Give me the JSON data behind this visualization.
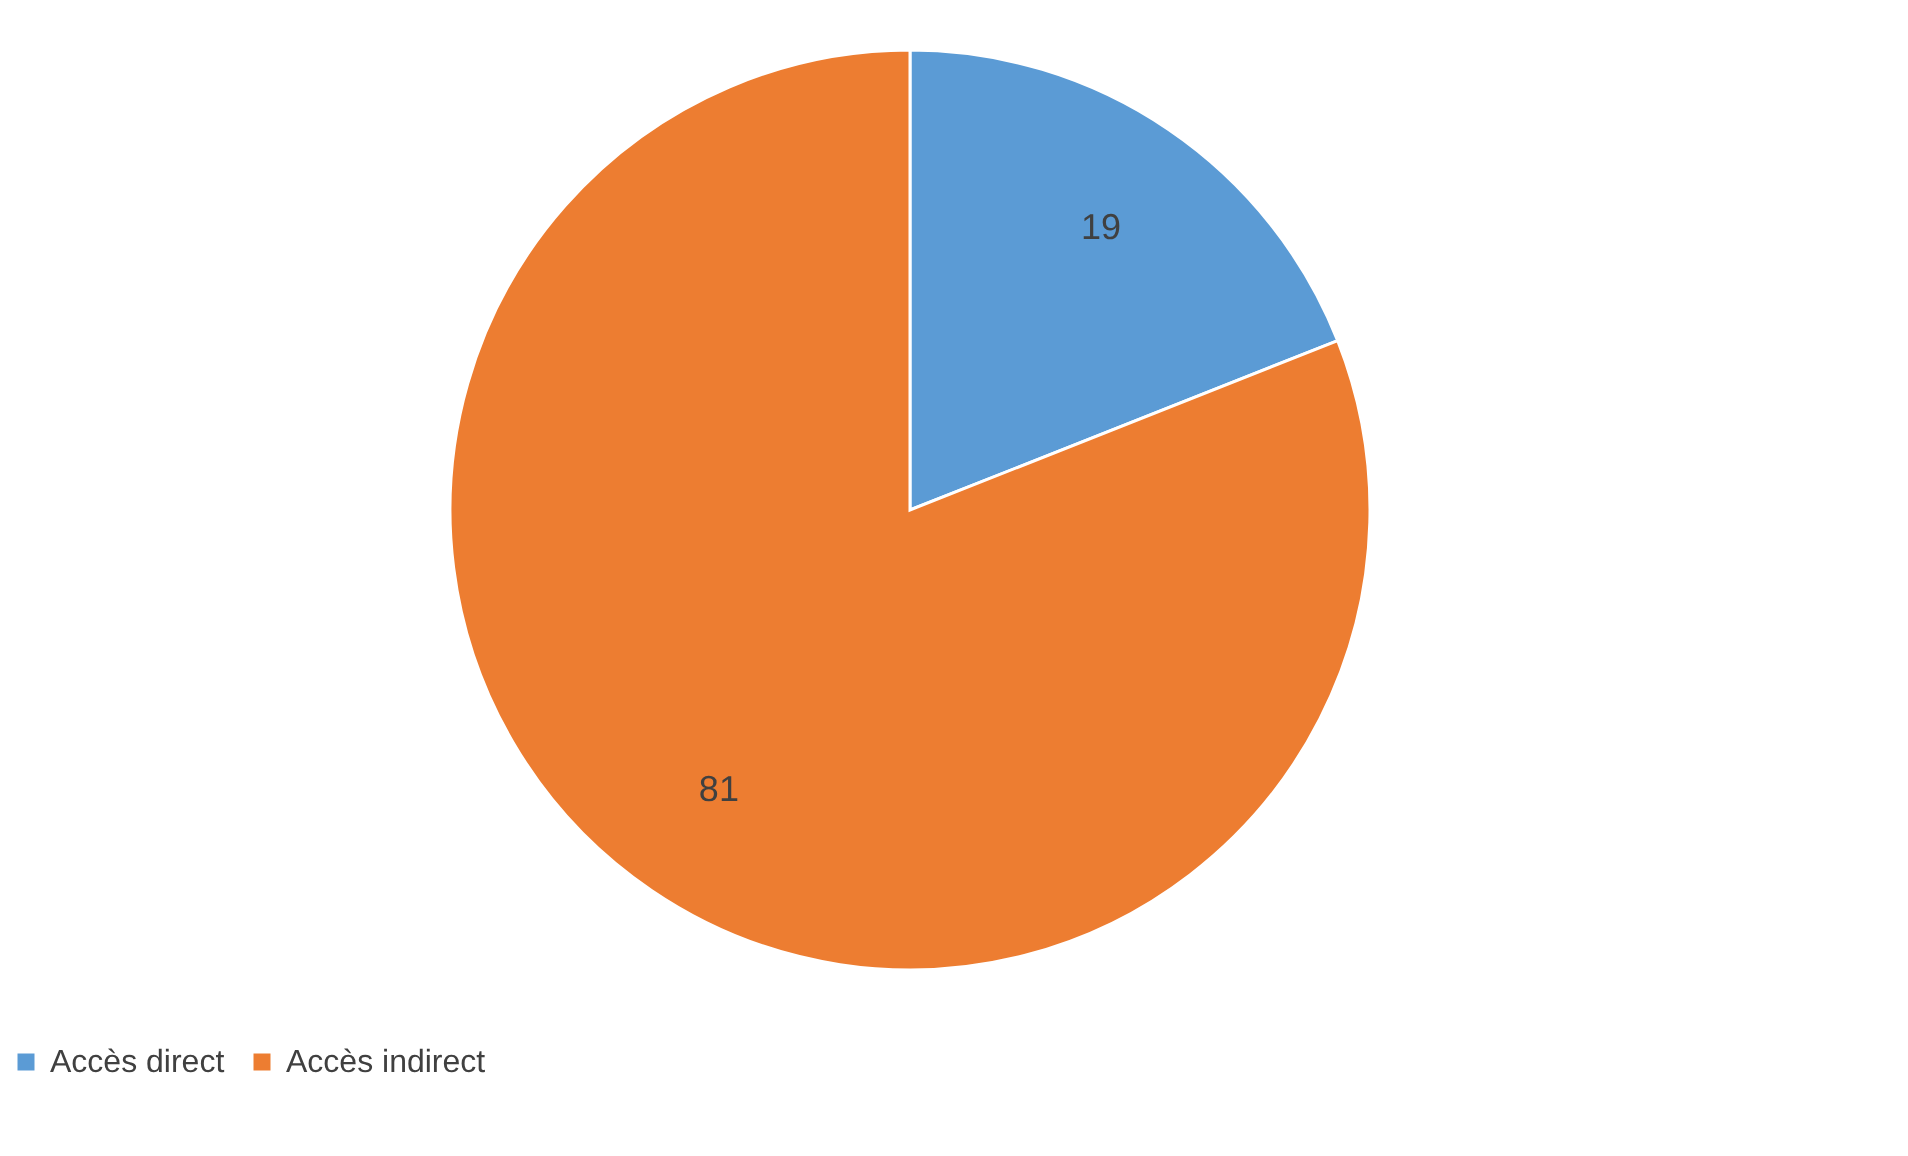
{
  "chart_data": {
    "type": "pie",
    "categories": [
      "Accès direct",
      "Accès indirect"
    ],
    "values": [
      19,
      81
    ],
    "colors": [
      "#5b9bd5",
      "#ed7d31"
    ],
    "data_labels": true,
    "legend": "bottom"
  }
}
